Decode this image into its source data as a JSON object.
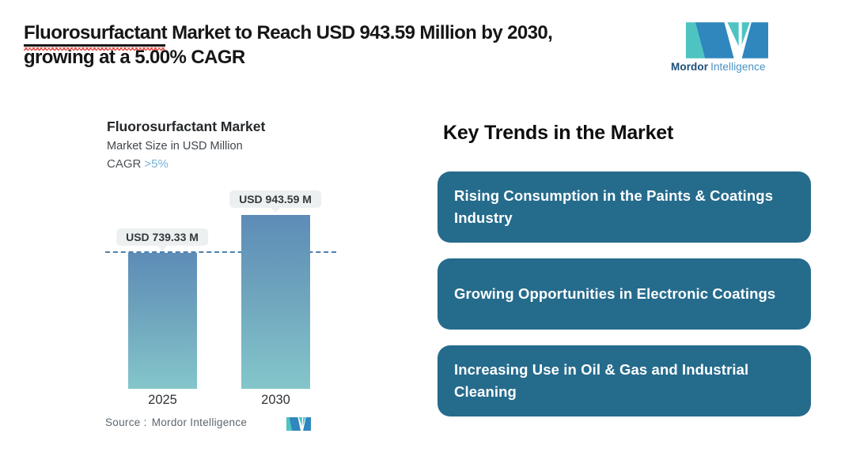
{
  "header": {
    "title_highlight": "Fluorosurfactant",
    "title_line1_rest": " Market to Reach USD 943.59 Million by 2030,",
    "title_line2": "growing at a 5.00% CAGR",
    "brand": {
      "name_bold": "Mordor",
      "name_light": "Intelligence"
    }
  },
  "chart": {
    "title": "Fluorosurfactant Market",
    "subtitle": "Market Size in USD Million",
    "cagr_label": "CAGR",
    "cagr_value": ">5%",
    "source_label": "Source :",
    "source_value": "Mordor Intelligence"
  },
  "chart_data": {
    "type": "bar",
    "title": "Fluorosurfactant Market",
    "ylabel": "Market Size in USD Million",
    "categories": [
      "2025",
      "2030"
    ],
    "values": [
      739.33,
      943.59
    ],
    "bar_labels": [
      "USD 739.33 M",
      "USD 943.59 M"
    ],
    "cagr": ">5%",
    "reference_line": 739.33,
    "ylim": [
      0,
      1040
    ],
    "grid": false,
    "legend": false
  },
  "trends": {
    "heading": "Key Trends in the Market",
    "items": [
      {
        "text": "Rising Consumption in the Paints & Coatings Industry"
      },
      {
        "text": "Growing Opportunities in Electronic Coatings"
      },
      {
        "text": "Increasing Use in Oil & Gas and Industrial Cleaning"
      }
    ]
  },
  "colors": {
    "accent_teal": "#4ec4c2",
    "accent_blue": "#2f87bd",
    "brand_text_dark": "#1c4d78",
    "brand_text_light": "#4a92c5",
    "trend_box": "#256b8c",
    "bar_gradient_top": "#5d8cb7",
    "bar_gradient_bottom": "#84c6ca",
    "dashed_line": "#4e81ae",
    "cagr_accent": "#76b2d8",
    "title_underline_wavy": "#e0443c"
  }
}
